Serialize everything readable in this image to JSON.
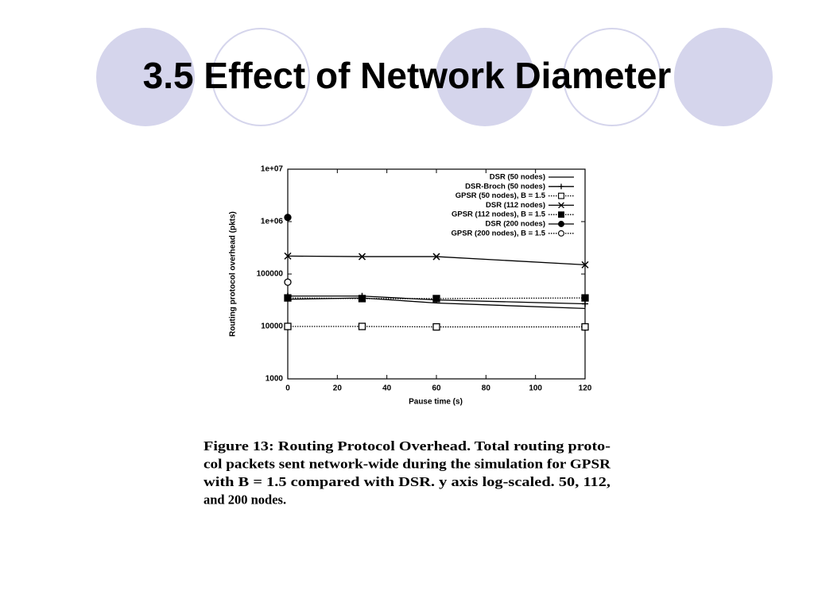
{
  "slide": {
    "title": "3.5 Effect of Network Diameter"
  },
  "chart_data": {
    "type": "line",
    "xlabel": "Pause time (s)",
    "ylabel": "Routing protocol overhead (pkts)",
    "x": [
      0,
      30,
      60,
      120
    ],
    "xlim": [
      0,
      120
    ],
    "xticks": [
      0,
      20,
      40,
      60,
      80,
      100,
      120
    ],
    "ylim": [
      1000,
      10000000
    ],
    "yscale": "log",
    "yticks": [
      1000,
      10000,
      100000,
      {
        "value": 1000000,
        "label": "1e+06"
      },
      {
        "value": 10000000,
        "label": "1e+07"
      }
    ],
    "grid": false,
    "legend": "top-right",
    "series": [
      {
        "name": "DSR (50 nodes)",
        "color": "#000000",
        "line_style": "solid",
        "marker": "none",
        "values": [
          33000,
          35000,
          28000,
          22000
        ]
      },
      {
        "name": "DSR-Broch (50 nodes)",
        "color": "#000000",
        "line_style": "solid",
        "marker": "plus",
        "values": [
          38000,
          38000,
          32000,
          27000
        ]
      },
      {
        "name": "GPSR (50 nodes), B = 1.5",
        "color": "#000000",
        "line_style": "dotted",
        "marker": "square-open",
        "values": [
          10000,
          10000,
          9800,
          9800
        ]
      },
      {
        "name": "DSR (112 nodes)",
        "color": "#000000",
        "line_style": "solid",
        "marker": "cross",
        "values": [
          220000,
          215000,
          215000,
          150000
        ]
      },
      {
        "name": "GPSR (112 nodes), B = 1.5",
        "color": "#000000",
        "line_style": "dotted",
        "marker": "square-filled",
        "values": [
          35000,
          34000,
          34000,
          35000
        ]
      },
      {
        "name": "DSR (200 nodes)",
        "color": "#000000",
        "line_style": "solid",
        "marker": "circle-filled",
        "values": [
          1200000,
          null,
          null,
          null
        ]
      },
      {
        "name": "GPSR (200 nodes), B = 1.5",
        "color": "#000000",
        "line_style": "dotted",
        "marker": "circle-open",
        "values": [
          70000,
          null,
          null,
          null
        ]
      }
    ]
  },
  "caption": {
    "lines": [
      "Figure 13: Routing Protocol Overhead. Total routing proto-",
      "col packets sent network-wide during the simulation for GPSR",
      "with B = 1.5 compared with DSR. y axis log-scaled. 50, 112,",
      "and 200 nodes."
    ]
  }
}
